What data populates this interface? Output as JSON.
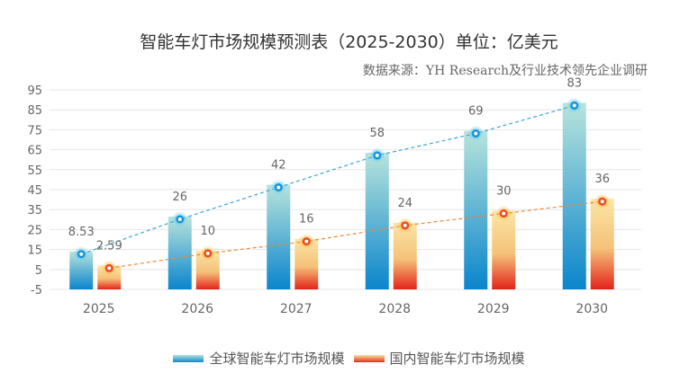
{
  "chart_data": {
    "type": "bar",
    "title": "智能车灯市场规模预测表（2025-2030）单位：亿美元",
    "subtitle": "数据来源：YH Research及行业技术领先企业调研",
    "categories": [
      "2025",
      "2026",
      "2027",
      "2028",
      "2029",
      "2030"
    ],
    "series": [
      {
        "name": "全球智能车灯市场规模",
        "values": [
          8.53,
          26,
          42,
          58,
          69,
          83
        ],
        "labels": [
          "8.53",
          "26",
          "42",
          "58",
          "69",
          "83"
        ],
        "color_top": "#b8e4dc",
        "color_bottom": "#0a85cc",
        "line_color": "#3aa6d6"
      },
      {
        "name": "国内智能车灯市场规模",
        "values": [
          2.59,
          10,
          16,
          24,
          30,
          36
        ],
        "labels": [
          "2.59",
          "10",
          "16",
          "24",
          "30",
          "36"
        ],
        "color_top": "#fbe6a6",
        "color_bottom": "#e3231a",
        "line_color": "#e98a3a"
      }
    ],
    "yticks": [
      -5,
      5,
      15,
      25,
      35,
      45,
      55,
      65,
      75,
      85,
      95
    ],
    "ylim": [
      -5,
      95
    ],
    "xlabel": "",
    "ylabel": "",
    "grid": true,
    "legend_position": "bottom",
    "overlay": "dashed trend line with markers connecting bar tops"
  }
}
